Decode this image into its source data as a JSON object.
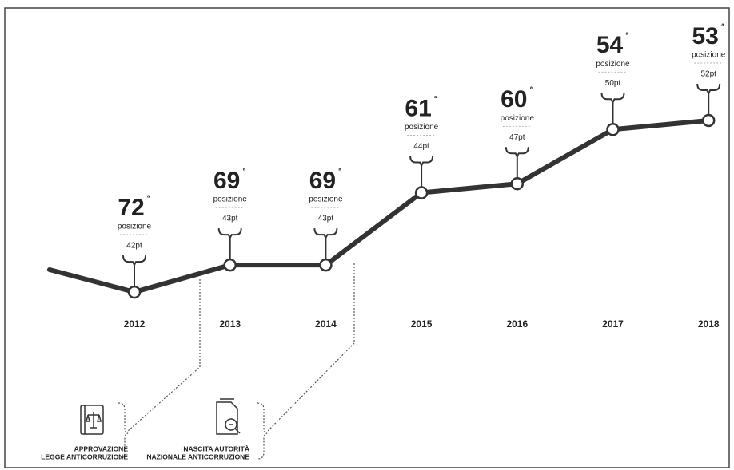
{
  "chart_data": {
    "type": "line",
    "categories": [
      "2012",
      "2013",
      "2014",
      "2015",
      "2016",
      "2017",
      "2018"
    ],
    "values": [
      72,
      69,
      69,
      61,
      60,
      54,
      53
    ],
    "color": "#333333",
    "ylim": [
      78,
      50
    ],
    "position_label": "posizione",
    "ordinal_suffix": "ª",
    "scores": {
      "values": [
        42,
        43,
        43,
        44,
        47,
        50,
        52
      ],
      "value_labels": [
        "42pt",
        "43pt",
        "43pt",
        "44pt",
        "47pt",
        "50pt",
        "52pt"
      ]
    },
    "annotations": [
      {
        "lines": [
          "APPROVAZIONE",
          "LEGGE ANTICORRUZIONE"
        ]
      },
      {
        "lines": [
          "NASCITA AUTORITÀ",
          "NAZIONALE ANTICORRUZIONE"
        ]
      }
    ]
  }
}
